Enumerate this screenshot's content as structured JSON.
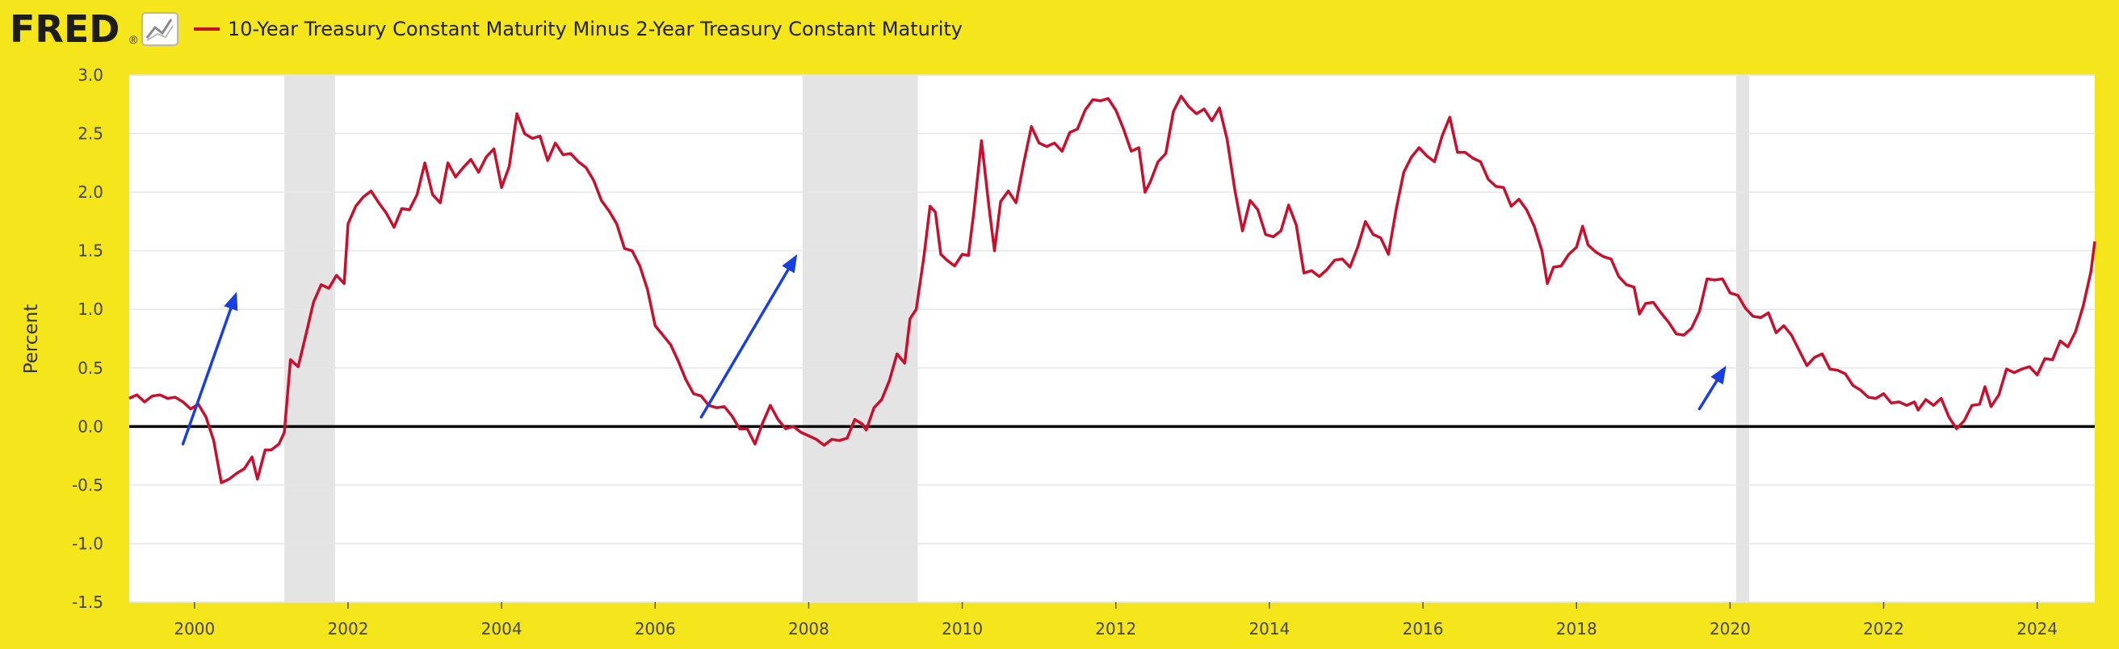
{
  "header": {
    "logo_text": "FRED",
    "logo_mark": "®",
    "logo_icon": "line-chart-icon",
    "series_title": "10-Year Treasury Constant Maturity Minus 2-Year Treasury Constant Maturity",
    "series_color": "#c8102e"
  },
  "colors": {
    "background": "#f5e51b",
    "plot_bg": "#ffffff",
    "line": "#c8102e",
    "recession": "#e4e4e4",
    "zero_line": "#000000",
    "arrows": "#1a3fe0",
    "grid": "#e6e6e6"
  },
  "chart_data": {
    "type": "line",
    "title": "10-Year Treasury Constant Maturity Minus 2-Year Treasury Constant Maturity",
    "xlabel": "",
    "ylabel": "Percent",
    "xlim": [
      1999.15,
      2024.75
    ],
    "ylim": [
      -1.5,
      3.0
    ],
    "x_ticks": [
      2000,
      2002,
      2004,
      2006,
      2008,
      2010,
      2012,
      2014,
      2016,
      2018,
      2020,
      2022,
      2024
    ],
    "y_ticks": [
      -1.5,
      -1.0,
      -0.5,
      0.0,
      0.5,
      1.0,
      1.5,
      2.0,
      2.5,
      3.0
    ],
    "y_tick_labels": [
      "-1.5",
      "-1.0",
      "-0.5",
      "0.0",
      "0.5",
      "1.0",
      "1.5",
      "2.0",
      "2.5",
      "3.0"
    ],
    "grid": true,
    "zero_line": 0.0,
    "recessions": [
      [
        2001.17,
        2001.83
      ],
      [
        2007.92,
        2009.42
      ],
      [
        2020.08,
        2020.25
      ]
    ],
    "annotations": [
      {
        "type": "arrow",
        "from": [
          1999.85,
          -0.15
        ],
        "to": [
          2000.55,
          1.15
        ]
      },
      {
        "type": "arrow",
        "from": [
          2006.6,
          0.08
        ],
        "to": [
          2007.85,
          1.47
        ]
      },
      {
        "type": "arrow",
        "from": [
          2019.6,
          0.15
        ],
        "to": [
          2019.95,
          0.52
        ]
      }
    ],
    "series": [
      {
        "name": "10-Year Treasury Constant Maturity Minus 2-Year Treasury Constant Maturity",
        "color": "#c8102e",
        "points": [
          [
            1999.15,
            0.24
          ],
          [
            1999.25,
            0.27
          ],
          [
            1999.35,
            0.21
          ],
          [
            1999.45,
            0.26
          ],
          [
            1999.55,
            0.27
          ],
          [
            1999.65,
            0.24
          ],
          [
            1999.75,
            0.25
          ],
          [
            1999.85,
            0.21
          ],
          [
            1999.95,
            0.15
          ],
          [
            2000.05,
            0.19
          ],
          [
            2000.15,
            0.08
          ],
          [
            2000.25,
            -0.12
          ],
          [
            2000.35,
            -0.48
          ],
          [
            2000.45,
            -0.45
          ],
          [
            2000.55,
            -0.4
          ],
          [
            2000.65,
            -0.36
          ],
          [
            2000.75,
            -0.26
          ],
          [
            2000.82,
            -0.45
          ],
          [
            2000.92,
            -0.2
          ],
          [
            2001.0,
            -0.2
          ],
          [
            2001.1,
            -0.15
          ],
          [
            2001.17,
            -0.05
          ],
          [
            2001.25,
            0.57
          ],
          [
            2001.35,
            0.51
          ],
          [
            2001.45,
            0.78
          ],
          [
            2001.55,
            1.06
          ],
          [
            2001.65,
            1.21
          ],
          [
            2001.75,
            1.18
          ],
          [
            2001.85,
            1.29
          ],
          [
            2001.95,
            1.22
          ],
          [
            2002.0,
            1.73
          ],
          [
            2002.1,
            1.88
          ],
          [
            2002.2,
            1.96
          ],
          [
            2002.3,
            2.01
          ],
          [
            2002.4,
            1.91
          ],
          [
            2002.5,
            1.82
          ],
          [
            2002.6,
            1.7
          ],
          [
            2002.7,
            1.86
          ],
          [
            2002.8,
            1.85
          ],
          [
            2002.9,
            1.98
          ],
          [
            2003.0,
            2.25
          ],
          [
            2003.1,
            1.98
          ],
          [
            2003.2,
            1.91
          ],
          [
            2003.3,
            2.25
          ],
          [
            2003.4,
            2.13
          ],
          [
            2003.5,
            2.21
          ],
          [
            2003.6,
            2.28
          ],
          [
            2003.7,
            2.17
          ],
          [
            2003.8,
            2.3
          ],
          [
            2003.9,
            2.37
          ],
          [
            2004.0,
            2.04
          ],
          [
            2004.1,
            2.22
          ],
          [
            2004.2,
            2.67
          ],
          [
            2004.3,
            2.5
          ],
          [
            2004.4,
            2.46
          ],
          [
            2004.5,
            2.48
          ],
          [
            2004.6,
            2.27
          ],
          [
            2004.7,
            2.42
          ],
          [
            2004.8,
            2.32
          ],
          [
            2004.9,
            2.33
          ],
          [
            2005.0,
            2.26
          ],
          [
            2005.1,
            2.21
          ],
          [
            2005.2,
            2.1
          ],
          [
            2005.3,
            1.93
          ],
          [
            2005.4,
            1.84
          ],
          [
            2005.5,
            1.73
          ],
          [
            2005.6,
            1.52
          ],
          [
            2005.7,
            1.5
          ],
          [
            2005.8,
            1.37
          ],
          [
            2005.9,
            1.17
          ],
          [
            2006.0,
            0.86
          ],
          [
            2006.1,
            0.78
          ],
          [
            2006.2,
            0.7
          ],
          [
            2006.3,
            0.56
          ],
          [
            2006.4,
            0.4
          ],
          [
            2006.5,
            0.28
          ],
          [
            2006.6,
            0.26
          ],
          [
            2006.7,
            0.18
          ],
          [
            2006.8,
            0.16
          ],
          [
            2006.9,
            0.17
          ],
          [
            2007.0,
            0.09
          ],
          [
            2007.1,
            -0.02
          ],
          [
            2007.2,
            -0.02
          ],
          [
            2007.3,
            -0.15
          ],
          [
            2007.4,
            0.03
          ],
          [
            2007.5,
            0.18
          ],
          [
            2007.6,
            0.06
          ],
          [
            2007.7,
            -0.02
          ],
          [
            2007.8,
            0.0
          ],
          [
            2007.9,
            -0.05
          ],
          [
            2008.0,
            -0.08
          ],
          [
            2008.1,
            -0.11
          ],
          [
            2008.2,
            -0.16
          ],
          [
            2008.3,
            -0.11
          ],
          [
            2008.4,
            -0.12
          ],
          [
            2008.5,
            -0.1
          ],
          [
            2008.6,
            0.06
          ],
          [
            2008.7,
            0.02
          ],
          [
            2008.75,
            -0.03
          ],
          [
            2008.85,
            0.16
          ],
          [
            2008.95,
            0.23
          ],
          [
            2009.05,
            0.39
          ],
          [
            2009.15,
            0.62
          ],
          [
            2009.25,
            0.54
          ],
          [
            2009.32,
            0.92
          ],
          [
            2009.4,
            1.0
          ],
          [
            2009.5,
            1.45
          ],
          [
            2009.58,
            1.88
          ],
          [
            2009.65,
            1.83
          ],
          [
            2009.72,
            1.47
          ],
          [
            2009.8,
            1.42
          ],
          [
            2009.9,
            1.37
          ],
          [
            2010.0,
            1.47
          ],
          [
            2010.08,
            1.46
          ],
          [
            2010.15,
            1.83
          ],
          [
            2010.25,
            2.44
          ],
          [
            2010.35,
            1.86
          ],
          [
            2010.42,
            1.5
          ],
          [
            2010.5,
            1.92
          ],
          [
            2010.6,
            2.01
          ],
          [
            2010.7,
            1.91
          ],
          [
            2010.8,
            2.25
          ],
          [
            2010.9,
            2.56
          ],
          [
            2011.0,
            2.42
          ],
          [
            2011.1,
            2.39
          ],
          [
            2011.2,
            2.42
          ],
          [
            2011.3,
            2.35
          ],
          [
            2011.4,
            2.51
          ],
          [
            2011.5,
            2.54
          ],
          [
            2011.6,
            2.7
          ],
          [
            2011.7,
            2.79
          ],
          [
            2011.8,
            2.78
          ],
          [
            2011.9,
            2.8
          ],
          [
            2012.0,
            2.7
          ],
          [
            2012.1,
            2.54
          ],
          [
            2012.2,
            2.35
          ],
          [
            2012.3,
            2.38
          ],
          [
            2012.38,
            2.0
          ],
          [
            2012.45,
            2.09
          ],
          [
            2012.55,
            2.26
          ],
          [
            2012.65,
            2.33
          ],
          [
            2012.75,
            2.69
          ],
          [
            2012.85,
            2.82
          ],
          [
            2012.95,
            2.73
          ],
          [
            2013.05,
            2.67
          ],
          [
            2013.15,
            2.71
          ],
          [
            2013.25,
            2.61
          ],
          [
            2013.35,
            2.72
          ],
          [
            2013.45,
            2.45
          ],
          [
            2013.55,
            2.02
          ],
          [
            2013.65,
            1.67
          ],
          [
            2013.75,
            1.93
          ],
          [
            2013.85,
            1.85
          ],
          [
            2013.95,
            1.64
          ],
          [
            2014.05,
            1.62
          ],
          [
            2014.15,
            1.67
          ],
          [
            2014.25,
            1.89
          ],
          [
            2014.35,
            1.72
          ],
          [
            2014.45,
            1.31
          ],
          [
            2014.55,
            1.33
          ],
          [
            2014.65,
            1.28
          ],
          [
            2014.75,
            1.34
          ],
          [
            2014.85,
            1.42
          ],
          [
            2014.95,
            1.43
          ],
          [
            2015.05,
            1.36
          ],
          [
            2015.15,
            1.53
          ],
          [
            2015.25,
            1.75
          ],
          [
            2015.35,
            1.64
          ],
          [
            2015.45,
            1.61
          ],
          [
            2015.55,
            1.47
          ],
          [
            2015.65,
            1.85
          ],
          [
            2015.75,
            2.17
          ],
          [
            2015.85,
            2.3
          ],
          [
            2015.95,
            2.38
          ],
          [
            2016.05,
            2.31
          ],
          [
            2016.15,
            2.26
          ],
          [
            2016.25,
            2.48
          ],
          [
            2016.35,
            2.64
          ],
          [
            2016.45,
            2.34
          ],
          [
            2016.55,
            2.34
          ],
          [
            2016.65,
            2.29
          ],
          [
            2016.75,
            2.26
          ],
          [
            2016.85,
            2.11
          ],
          [
            2016.95,
            2.05
          ],
          [
            2017.05,
            2.04
          ],
          [
            2017.15,
            1.88
          ],
          [
            2017.25,
            1.94
          ],
          [
            2017.35,
            1.85
          ],
          [
            2017.45,
            1.71
          ],
          [
            2017.55,
            1.5
          ],
          [
            2017.62,
            1.22
          ],
          [
            2017.7,
            1.36
          ],
          [
            2017.8,
            1.37
          ],
          [
            2017.9,
            1.47
          ],
          [
            2018.0,
            1.53
          ],
          [
            2018.08,
            1.71
          ],
          [
            2018.15,
            1.55
          ],
          [
            2018.25,
            1.49
          ],
          [
            2018.35,
            1.45
          ],
          [
            2018.45,
            1.43
          ],
          [
            2018.55,
            1.28
          ],
          [
            2018.65,
            1.21
          ],
          [
            2018.75,
            1.19
          ],
          [
            2018.82,
            0.96
          ],
          [
            2018.9,
            1.05
          ],
          [
            2019.0,
            1.06
          ],
          [
            2019.1,
            0.97
          ],
          [
            2019.2,
            0.89
          ],
          [
            2019.3,
            0.79
          ],
          [
            2019.4,
            0.78
          ],
          [
            2019.5,
            0.84
          ],
          [
            2019.6,
            0.98
          ],
          [
            2019.7,
            1.26
          ],
          [
            2019.8,
            1.25
          ],
          [
            2019.9,
            1.26
          ],
          [
            2020.0,
            1.14
          ],
          [
            2020.1,
            1.12
          ],
          [
            2020.2,
            1.01
          ],
          [
            2020.3,
            0.94
          ],
          [
            2020.4,
            0.93
          ],
          [
            2020.5,
            0.97
          ],
          [
            2020.6,
            0.8
          ],
          [
            2020.7,
            0.86
          ],
          [
            2020.8,
            0.78
          ],
          [
            2020.9,
            0.65
          ],
          [
            2021.0,
            0.52
          ],
          [
            2021.1,
            0.59
          ],
          [
            2021.2,
            0.62
          ],
          [
            2021.3,
            0.49
          ],
          [
            2021.4,
            0.48
          ],
          [
            2021.5,
            0.45
          ],
          [
            2021.6,
            0.35
          ],
          [
            2021.7,
            0.31
          ],
          [
            2021.8,
            0.25
          ],
          [
            2021.9,
            0.24
          ],
          [
            2022.0,
            0.28
          ],
          [
            2022.1,
            0.2
          ],
          [
            2022.2,
            0.21
          ],
          [
            2022.3,
            0.18
          ],
          [
            2022.4,
            0.21
          ],
          [
            2022.45,
            0.14
          ],
          [
            2022.55,
            0.23
          ],
          [
            2022.65,
            0.18
          ],
          [
            2022.75,
            0.24
          ],
          [
            2022.85,
            0.08
          ],
          [
            2022.95,
            -0.02
          ],
          [
            2023.05,
            0.05
          ],
          [
            2023.15,
            0.18
          ],
          [
            2023.25,
            0.19
          ],
          [
            2023.32,
            0.34
          ],
          [
            2023.4,
            0.17
          ],
          [
            2023.5,
            0.27
          ],
          [
            2023.6,
            0.49
          ],
          [
            2023.7,
            0.46
          ],
          [
            2023.8,
            0.49
          ],
          [
            2023.9,
            0.51
          ],
          [
            2024.0,
            0.44
          ],
          [
            2024.1,
            0.58
          ],
          [
            2024.2,
            0.57
          ],
          [
            2024.3,
            0.73
          ],
          [
            2024.4,
            0.68
          ],
          [
            2024.5,
            0.81
          ],
          [
            2024.6,
            1.03
          ],
          [
            2024.7,
            1.32
          ],
          [
            2024.75,
            1.58
          ]
        ]
      }
    ]
  }
}
